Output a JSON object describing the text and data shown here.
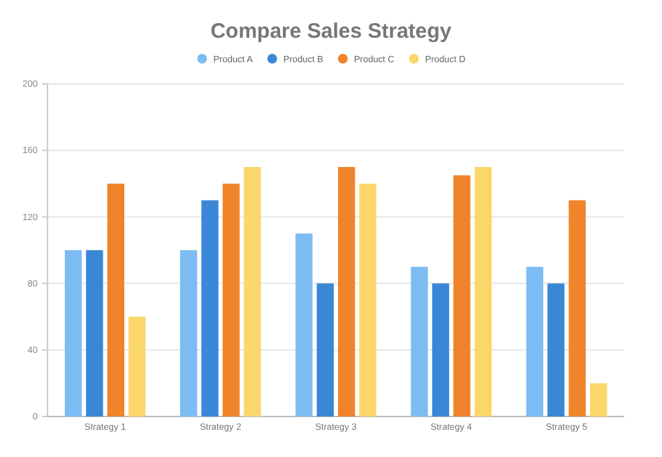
{
  "chart_data": {
    "type": "bar",
    "title": "Compare Sales Strategy",
    "categories": [
      "Strategy 1",
      "Strategy 2",
      "Strategy 3",
      "Strategy 4",
      "Strategy 5"
    ],
    "series": [
      {
        "name": "Product A",
        "color": "#7dbcf2",
        "values": [
          100,
          100,
          110,
          90,
          90
        ]
      },
      {
        "name": "Product B",
        "color": "#3a87d6",
        "values": [
          100,
          130,
          80,
          80,
          80
        ]
      },
      {
        "name": "Product C",
        "color": "#f0842a",
        "values": [
          140,
          140,
          150,
          145,
          130
        ]
      },
      {
        "name": "Product D",
        "color": "#fbd66a",
        "values": [
          60,
          150,
          140,
          150,
          20
        ]
      }
    ],
    "ylim": [
      0,
      200
    ],
    "yticks": [
      0,
      40,
      80,
      120,
      160,
      200
    ],
    "grid": "y",
    "legend": "top"
  }
}
